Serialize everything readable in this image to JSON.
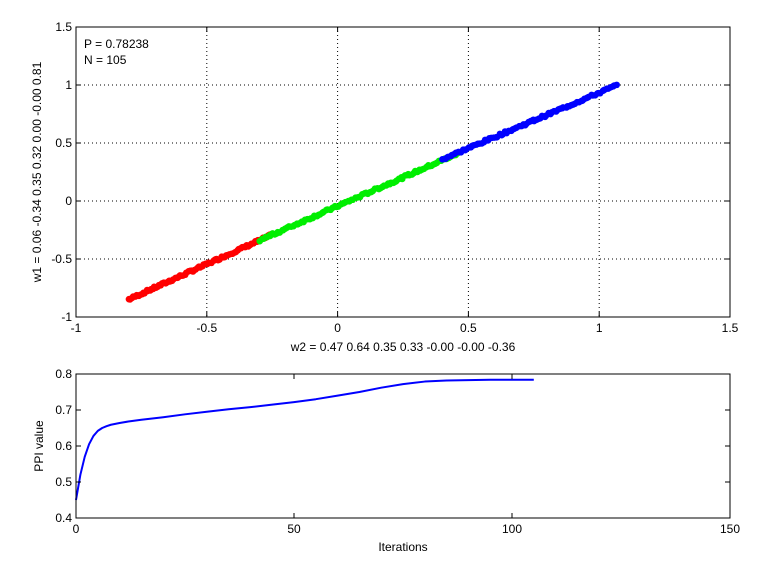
{
  "figure": {
    "background": "#ffffff",
    "axes_color": "#000000",
    "grid_style": "dotted"
  },
  "chart_data": [
    {
      "type": "scatter",
      "title": "",
      "annotations": [
        "P = 0.78238",
        "N = 105"
      ],
      "xlabel": "w2 = 0.47  0.64  0.35  0.33  -0.00  -0.00  -0.36",
      "ylabel": "w1 = 0.06  -0.34  0.35  0.32  0.00  -0.00  0.81",
      "xlim": [
        -1,
        1.5
      ],
      "ylim": [
        -1,
        1.5
      ],
      "xticks": [
        -1,
        -0.5,
        0,
        0.5,
        1,
        1.5
      ],
      "yticks": [
        -1,
        -0.5,
        0,
        0.5,
        1,
        1.5
      ],
      "xtick_labels": [
        "-1",
        "-0.5",
        "0",
        "0.5",
        "1",
        "1.5"
      ],
      "ytick_labels": [
        "-1",
        "-0.5",
        "0",
        "0.5",
        "1",
        "1.5"
      ],
      "grid": true,
      "series": [
        {
          "color": "#ff0000",
          "x_range": [
            -0.8,
            -0.25
          ],
          "y_range": [
            -0.85,
            -0.29
          ],
          "approx_points": 90,
          "description": "points along the line y ≈ x"
        },
        {
          "color": "#00ee00",
          "x_range": [
            -0.3,
            0.47
          ],
          "y_range": [
            -0.34,
            0.42
          ],
          "approx_points": 110
        },
        {
          "color": "#0000ff",
          "x_range": [
            0.4,
            1.07
          ],
          "y_range": [
            0.36,
            1.0
          ],
          "approx_points": 90
        }
      ]
    },
    {
      "type": "line",
      "title": "",
      "xlabel": "Iterations",
      "ylabel": "PPI value",
      "xlim": [
        0,
        150
      ],
      "ylim": [
        0.4,
        0.8
      ],
      "xticks": [
        0,
        50,
        100,
        150
      ],
      "yticks": [
        0.4,
        0.5,
        0.6,
        0.7,
        0.8
      ],
      "xtick_labels": [
        "0",
        "50",
        "100",
        "150"
      ],
      "ytick_labels": [
        "0.4",
        "0.5",
        "0.6",
        "0.7",
        "0.8"
      ],
      "grid": false,
      "series": [
        {
          "color": "#0000ff",
          "x": [
            0,
            1,
            2,
            3,
            4,
            5,
            6,
            7,
            8,
            10,
            12,
            15,
            20,
            25,
            30,
            35,
            40,
            45,
            50,
            55,
            60,
            65,
            70,
            75,
            80,
            85,
            90,
            95,
            100,
            105
          ],
          "y": [
            0.45,
            0.52,
            0.57,
            0.605,
            0.628,
            0.642,
            0.65,
            0.655,
            0.659,
            0.664,
            0.668,
            0.673,
            0.68,
            0.688,
            0.695,
            0.702,
            0.708,
            0.715,
            0.722,
            0.73,
            0.74,
            0.75,
            0.762,
            0.772,
            0.779,
            0.782,
            0.783,
            0.784,
            0.784,
            0.784
          ]
        }
      ]
    }
  ]
}
